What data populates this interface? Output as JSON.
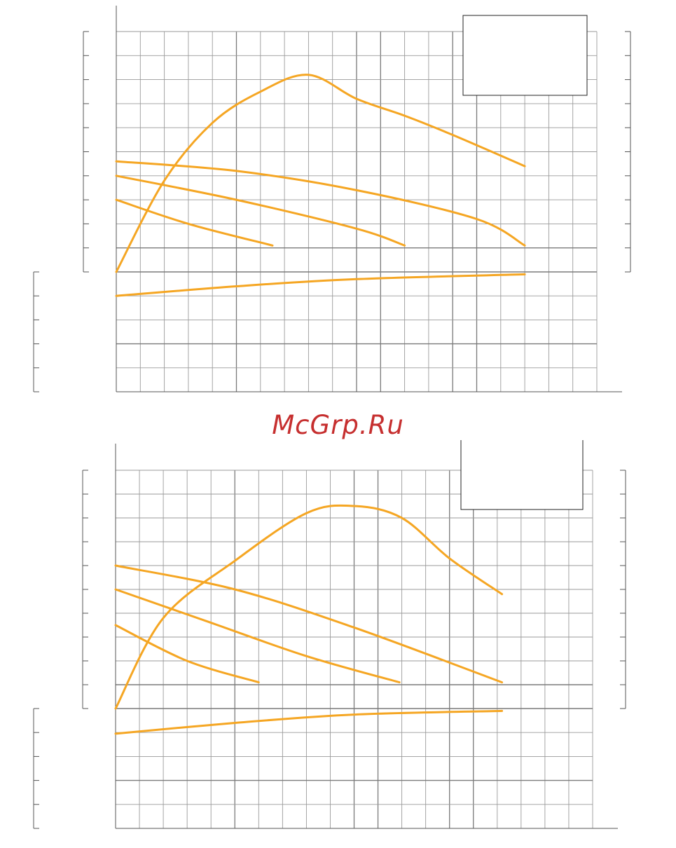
{
  "watermark": {
    "text": "McGrp.Ru",
    "color": "#c62f2f"
  },
  "colors": {
    "curve": "#f5a623",
    "grid": "#9a9a9a",
    "grid_major": "#7a7a7a",
    "frame": "#555555"
  },
  "chart_data": [
    {
      "type": "line",
      "title": "",
      "xlabel": "",
      "ylabel": "",
      "grid": true,
      "legend": "top-right",
      "xlim": [
        0,
        20
      ],
      "ylim": [
        -5,
        10
      ],
      "x_columns": 20,
      "y_rows_upper": 10,
      "y_rows_lower": 5,
      "series": [
        {
          "x": [
            0,
            2,
            4,
            6,
            8,
            10,
            12,
            14,
            17
          ],
          "y": [
            0,
            3.8,
            6.2,
            7.5,
            8.2,
            7.2,
            6.5,
            5.7,
            4.4
          ]
        },
        {
          "x": [
            0,
            5,
            10,
            15,
            17
          ],
          "y": [
            4.6,
            4.2,
            3.4,
            2.2,
            1.1
          ]
        },
        {
          "x": [
            0,
            5,
            10,
            12
          ],
          "y": [
            4.0,
            3.0,
            1.8,
            1.1
          ]
        },
        {
          "x": [
            0,
            3,
            6.5
          ],
          "y": [
            3.0,
            2.0,
            1.1
          ]
        },
        {
          "x": [
            0,
            5,
            10,
            17
          ],
          "y": [
            -1.0,
            -0.6,
            -0.3,
            -0.1
          ]
        }
      ]
    },
    {
      "type": "line",
      "title": "",
      "xlabel": "",
      "ylabel": "",
      "grid": true,
      "legend": "top-right",
      "xlim": [
        0,
        20
      ],
      "ylim": [
        -5,
        10
      ],
      "x_columns": 20,
      "y_rows_upper": 10,
      "y_rows_lower": 5,
      "series": [
        {
          "x": [
            0,
            2,
            5,
            8,
            10,
            12,
            14,
            16.2
          ],
          "y": [
            0,
            3.8,
            6.2,
            8.2,
            8.5,
            8.0,
            6.3,
            4.8
          ]
        },
        {
          "x": [
            0,
            5,
            10,
            16.2
          ],
          "y": [
            6.0,
            5.0,
            3.4,
            1.1
          ]
        },
        {
          "x": [
            0,
            4,
            8,
            11.9
          ],
          "y": [
            5.0,
            3.6,
            2.2,
            1.1
          ]
        },
        {
          "x": [
            0,
            3,
            6
          ],
          "y": [
            3.5,
            2.0,
            1.1
          ]
        },
        {
          "x": [
            0,
            5,
            10,
            16.2
          ],
          "y": [
            -1.05,
            -0.6,
            -0.25,
            -0.1
          ]
        }
      ]
    }
  ]
}
